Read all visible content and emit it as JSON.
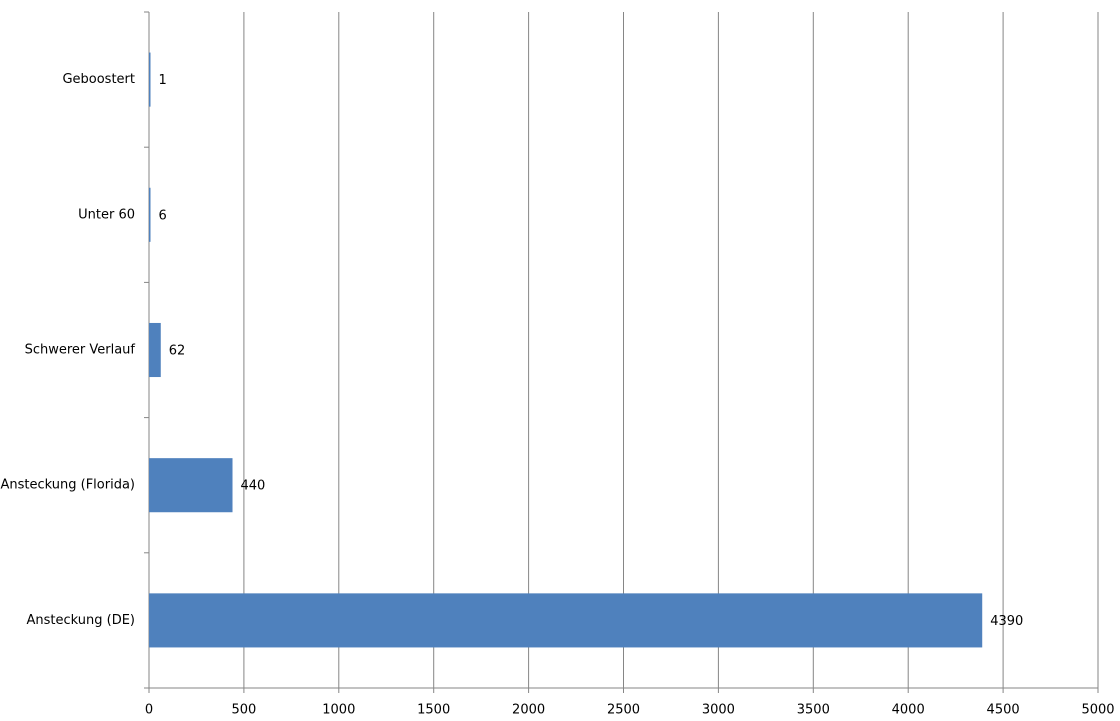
{
  "chart_data": {
    "type": "bar",
    "orientation": "horizontal",
    "categories": [
      "Geboostert",
      "Unter 60",
      "Schwerer Verlauf",
      "Ansteckung (Florida)",
      "Ansteckung (DE)"
    ],
    "values": [
      1,
      6,
      62,
      440,
      4390
    ],
    "color": "#4f81bd",
    "xlim": [
      0,
      5000
    ],
    "xticks": [
      0,
      500,
      1000,
      1500,
      2000,
      2500,
      3000,
      3500,
      4000,
      4500,
      5000
    ],
    "grid": true
  }
}
